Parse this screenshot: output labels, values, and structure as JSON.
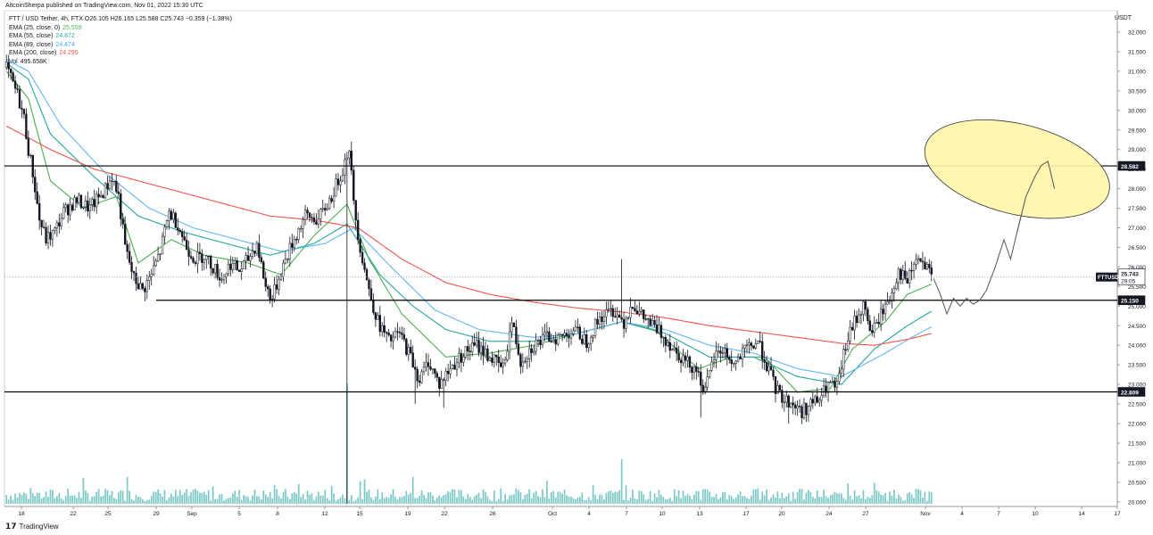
{
  "header": {
    "text": "AltcoinSherpa published on TradingView.com, Nov 01, 2022 15:30 UTC"
  },
  "legend": {
    "symbol_line": "FTT / USD Tether, 4h, FTX  O26.105  H26.165  L25.588  C25.743  −0.359 (−1.38%)",
    "emas": [
      {
        "label": "EMA (25, close, 0)",
        "value": "25.559",
        "color": "#4caf50"
      },
      {
        "label": "EMA (55, close)",
        "value": "24.872",
        "color": "#26a69a"
      },
      {
        "label": "EMA (89, close)",
        "value": "24.474",
        "color": "#42a5f5"
      },
      {
        "label": "EMA (200, close)",
        "value": "24.295",
        "color": "#ef5350"
      }
    ],
    "vol_label": "Vol",
    "vol_value": "495.658K"
  },
  "currency": "USDT",
  "footer": {
    "logo_glyph": "𝟭𝟳",
    "text": "TradingView"
  },
  "colors": {
    "candle": "#131722",
    "ema25": "#4caf50",
    "ema55": "#26a69a",
    "ema89": "#64b5f6",
    "ema200": "#ef5350",
    "volume": "#7ec8c8",
    "ellipse_fill": "#fff5a8",
    "ellipse_stroke": "#333333",
    "projection": "#555555"
  },
  "chart_data": {
    "type": "candlestick",
    "y_axis": {
      "range": [
        19.75,
        32.3
      ],
      "ticks": [
        "32.000",
        "31.500",
        "31.000",
        "30.500",
        "30.000",
        "29.500",
        "29.000",
        "28.500",
        "28.000",
        "27.500",
        "27.000",
        "26.500",
        "26.000",
        "25.500",
        "25.000",
        "24.500",
        "24.000",
        "23.500",
        "23.000",
        "22.500",
        "22.000",
        "21.500",
        "21.000",
        "20.500",
        "20.000"
      ]
    },
    "x_axis": {
      "labels": [
        "18",
        "22",
        "25",
        "29",
        "Sep",
        "5",
        "8",
        "12",
        "15",
        "19",
        "22",
        "26",
        "Oct",
        "4",
        "7",
        "10",
        "13",
        "17",
        "20",
        "24",
        "27",
        "Nov",
        "4",
        "7",
        "10",
        "14",
        "17"
      ]
    },
    "horizontal_levels": [
      28.582,
      25.15,
      22.809
    ],
    "price_labels": [
      {
        "symbol": "FTTUSDT",
        "value": "25.743",
        "sub": "29:05"
      },
      {
        "level": "28.582"
      },
      {
        "level": "25.150"
      },
      {
        "level": "22.809"
      }
    ],
    "price_anchors": [
      [
        0,
        31.1
      ],
      [
        2,
        30.8
      ],
      [
        5,
        30.4
      ],
      [
        8,
        29.8
      ],
      [
        10,
        29.0
      ],
      [
        12,
        28.4
      ],
      [
        15,
        27.2
      ],
      [
        18,
        26.7
      ],
      [
        22,
        26.9
      ],
      [
        26,
        27.4
      ],
      [
        32,
        27.7
      ],
      [
        38,
        27.5
      ],
      [
        44,
        27.9
      ],
      [
        48,
        28.3
      ],
      [
        51,
        27.8
      ],
      [
        54,
        26.5
      ],
      [
        58,
        25.7
      ],
      [
        62,
        25.4
      ],
      [
        66,
        25.8
      ],
      [
        70,
        26.4
      ],
      [
        74,
        27.4
      ],
      [
        78,
        27.1
      ],
      [
        82,
        26.5
      ],
      [
        86,
        26.2
      ],
      [
        90,
        26.3
      ],
      [
        94,
        26.0
      ],
      [
        98,
        25.7
      ],
      [
        102,
        26.1
      ],
      [
        106,
        25.9
      ],
      [
        110,
        26.2
      ],
      [
        114,
        26.6
      ],
      [
        118,
        25.5
      ],
      [
        121,
        25.2
      ],
      [
        125,
        25.9
      ],
      [
        130,
        26.6
      ],
      [
        136,
        27.3
      ],
      [
        142,
        27.2
      ],
      [
        148,
        27.8
      ],
      [
        153,
        28.5
      ],
      [
        156,
        29.1
      ],
      [
        158,
        27.6
      ],
      [
        161,
        26.5
      ],
      [
        165,
        25.4
      ],
      [
        169,
        24.6
      ],
      [
        174,
        24.1
      ],
      [
        179,
        24.3
      ],
      [
        184,
        23.7
      ],
      [
        188,
        23.1
      ],
      [
        192,
        23.6
      ],
      [
        197,
        23.0
      ],
      [
        202,
        23.4
      ],
      [
        208,
        23.8
      ],
      [
        214,
        24.0
      ],
      [
        220,
        23.7
      ],
      [
        226,
        23.4
      ],
      [
        230,
        24.6
      ],
      [
        234,
        23.6
      ],
      [
        240,
        24.0
      ],
      [
        246,
        24.2
      ],
      [
        252,
        24.2
      ],
      [
        258,
        24.4
      ],
      [
        264,
        24.1
      ],
      [
        270,
        24.7
      ],
      [
        276,
        24.9
      ],
      [
        281,
        24.6
      ],
      [
        285,
        25.1
      ],
      [
        288,
        24.8
      ],
      [
        292,
        24.6
      ],
      [
        298,
        24.3
      ],
      [
        304,
        23.9
      ],
      [
        309,
        23.6
      ],
      [
        314,
        23.4
      ],
      [
        318,
        22.8
      ],
      [
        322,
        23.7
      ],
      [
        326,
        23.9
      ],
      [
        331,
        23.5
      ],
      [
        337,
        23.9
      ],
      [
        342,
        24.1
      ],
      [
        346,
        23.5
      ],
      [
        350,
        22.9
      ],
      [
        354,
        22.6
      ],
      [
        358,
        22.5
      ],
      [
        362,
        22.3
      ],
      [
        366,
        22.5
      ],
      [
        370,
        22.6
      ],
      [
        374,
        23.0
      ],
      [
        378,
        22.9
      ],
      [
        382,
        24.0
      ],
      [
        386,
        24.6
      ],
      [
        390,
        25.0
      ],
      [
        394,
        24.3
      ],
      [
        398,
        24.8
      ],
      [
        402,
        25.2
      ],
      [
        406,
        25.9
      ],
      [
        410,
        25.6
      ],
      [
        414,
        26.2
      ],
      [
        418,
        26.0
      ],
      [
        421,
        25.74
      ]
    ],
    "ema_anchors": {
      "ema25": [
        [
          0,
          31.0
        ],
        [
          10,
          30.3
        ],
        [
          20,
          28.2
        ],
        [
          35,
          27.5
        ],
        [
          50,
          27.8
        ],
        [
          60,
          26.1
        ],
        [
          75,
          26.7
        ],
        [
          90,
          26.3
        ],
        [
          110,
          26.1
        ],
        [
          125,
          25.8
        ],
        [
          140,
          26.8
        ],
        [
          155,
          27.6
        ],
        [
          165,
          26.2
        ],
        [
          180,
          24.8
        ],
        [
          200,
          23.7
        ],
        [
          220,
          23.8
        ],
        [
          240,
          24.0
        ],
        [
          260,
          24.3
        ],
        [
          280,
          24.6
        ],
        [
          295,
          24.4
        ],
        [
          315,
          23.4
        ],
        [
          330,
          23.7
        ],
        [
          345,
          23.7
        ],
        [
          360,
          22.8
        ],
        [
          375,
          22.9
        ],
        [
          385,
          23.9
        ],
        [
          400,
          24.6
        ],
        [
          410,
          25.3
        ],
        [
          421,
          25.56
        ]
      ],
      "ema55": [
        [
          0,
          31.2
        ],
        [
          10,
          30.8
        ],
        [
          20,
          29.4
        ],
        [
          40,
          28.3
        ],
        [
          60,
          27.3
        ],
        [
          80,
          26.9
        ],
        [
          100,
          26.6
        ],
        [
          120,
          26.3
        ],
        [
          140,
          26.6
        ],
        [
          155,
          27.1
        ],
        [
          170,
          25.8
        ],
        [
          185,
          25.0
        ],
        [
          200,
          24.4
        ],
        [
          220,
          24.1
        ],
        [
          240,
          24.1
        ],
        [
          260,
          24.3
        ],
        [
          280,
          24.6
        ],
        [
          300,
          24.3
        ],
        [
          320,
          23.7
        ],
        [
          340,
          23.7
        ],
        [
          360,
          23.2
        ],
        [
          380,
          23.0
        ],
        [
          395,
          23.9
        ],
        [
          410,
          24.5
        ],
        [
          421,
          24.87
        ]
      ],
      "ema89": [
        [
          0,
          31.3
        ],
        [
          10,
          31.0
        ],
        [
          25,
          29.6
        ],
        [
          45,
          28.4
        ],
        [
          65,
          27.5
        ],
        [
          85,
          27.0
        ],
        [
          105,
          26.7
        ],
        [
          125,
          26.4
        ],
        [
          145,
          26.6
        ],
        [
          158,
          27.0
        ],
        [
          175,
          26.0
        ],
        [
          195,
          24.9
        ],
        [
          215,
          24.4
        ],
        [
          240,
          24.2
        ],
        [
          260,
          24.3
        ],
        [
          280,
          24.6
        ],
        [
          300,
          24.4
        ],
        [
          320,
          24.0
        ],
        [
          340,
          23.8
        ],
        [
          360,
          23.4
        ],
        [
          380,
          23.2
        ],
        [
          400,
          23.8
        ],
        [
          412,
          24.2
        ],
        [
          421,
          24.47
        ]
      ],
      "ema200": [
        [
          0,
          29.6
        ],
        [
          20,
          29.0
        ],
        [
          40,
          28.5
        ],
        [
          60,
          28.2
        ],
        [
          80,
          27.9
        ],
        [
          100,
          27.6
        ],
        [
          120,
          27.3
        ],
        [
          140,
          27.2
        ],
        [
          160,
          27.0
        ],
        [
          180,
          26.2
        ],
        [
          200,
          25.6
        ],
        [
          220,
          25.3
        ],
        [
          240,
          25.1
        ],
        [
          260,
          24.95
        ],
        [
          280,
          24.85
        ],
        [
          300,
          24.7
        ],
        [
          320,
          24.5
        ],
        [
          340,
          24.35
        ],
        [
          360,
          24.2
        ],
        [
          380,
          24.05
        ],
        [
          395,
          24.0
        ],
        [
          410,
          24.15
        ],
        [
          421,
          24.3
        ]
      ]
    },
    "projection": [
      [
        422,
        25.7
      ],
      [
        425,
        25.3
      ],
      [
        428,
        24.8
      ],
      [
        431,
        25.2
      ],
      [
        434,
        25.0
      ],
      [
        437,
        25.2
      ],
      [
        440,
        25.05
      ],
      [
        443,
        25.15
      ],
      [
        446,
        25.4
      ],
      [
        450,
        26.0
      ],
      [
        454,
        26.7
      ],
      [
        457,
        26.2
      ],
      [
        460,
        26.9
      ],
      [
        464,
        27.8
      ],
      [
        468,
        28.3
      ],
      [
        471,
        28.6
      ],
      [
        474,
        28.7
      ],
      [
        477,
        28.0
      ]
    ],
    "target_zone": {
      "center_bar": 460,
      "center_price": 28.5,
      "span_bars": 42,
      "span_price": 2.3
    }
  }
}
